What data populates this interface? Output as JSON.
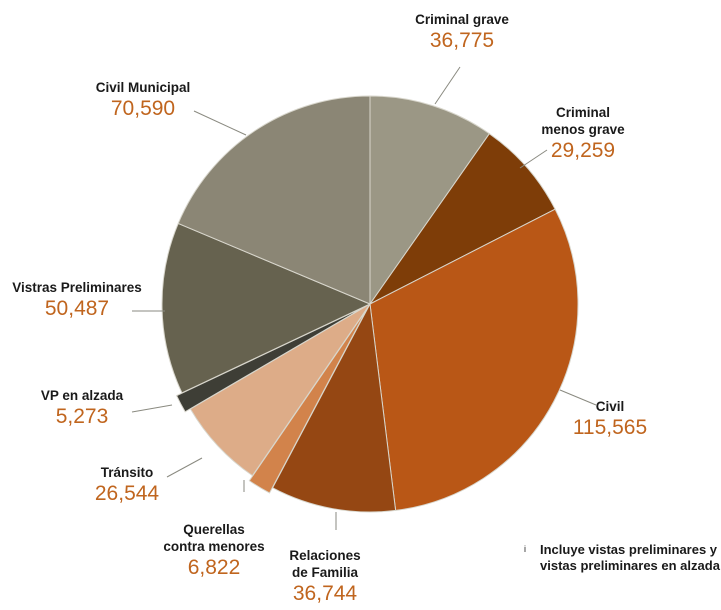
{
  "chart_data": {
    "type": "pie",
    "slices": [
      {
        "name": [
          "Criminal grave"
        ],
        "value_label": "36,775",
        "value": 36775,
        "color": "#9b9785"
      },
      {
        "name": [
          "Criminal",
          "menos grave"
        ],
        "value_label": "29,259",
        "value": 29259,
        "color": "#7e3d08"
      },
      {
        "name": [
          "Civil"
        ],
        "value_label": "115,565",
        "value": 115565,
        "color": "#b95716"
      },
      {
        "name": [
          "Relaciones",
          "de Familia"
        ],
        "value_label": "36,744",
        "value": 36744,
        "color": "#954713"
      },
      {
        "name": [
          "Querellas",
          "contra menores"
        ],
        "value_label": "6,822",
        "value": 6822,
        "color": "#d2834b"
      },
      {
        "name": [
          "Tránsito"
        ],
        "value_label": "26,544",
        "value": 26544,
        "color": "#ddac88"
      },
      {
        "name": [
          "VP en alzada"
        ],
        "value_label": "5,273",
        "value": 5273,
        "color": "#3e3e36"
      },
      {
        "name": [
          "Vistras Preliminares"
        ],
        "value_label": "50,487",
        "value": 50487,
        "color": "#66624f"
      },
      {
        "name": [
          "Civil Municipal"
        ],
        "value_label": "70,590",
        "value": 70590,
        "color": "#8b8675"
      }
    ]
  },
  "footnote": {
    "mark": "i",
    "line1": "Incluye vistas preliminares y",
    "line2": "vistas preliminares en alzada"
  }
}
